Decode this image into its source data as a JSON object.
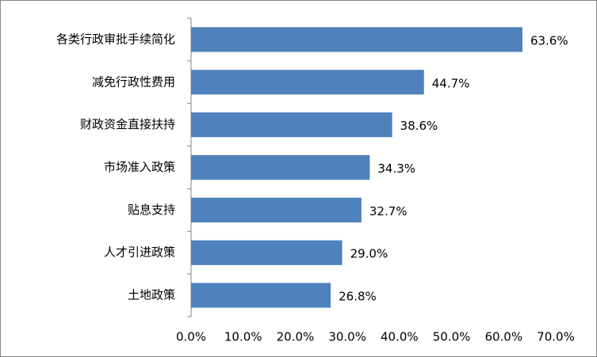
{
  "chart_data": {
    "type": "hbar",
    "categories": [
      "各类行政审批手续简化",
      "减免行政性费用",
      "财政资金直接扶持",
      "市场准入政策",
      "贴息支持",
      "人才引进政策",
      "土地政策"
    ],
    "values": [
      63.6,
      44.7,
      38.6,
      34.3,
      32.7,
      29.0,
      26.8
    ],
    "value_labels": [
      "63.6%",
      "44.7%",
      "38.6%",
      "34.3%",
      "32.7%",
      "29.0%",
      "26.8%"
    ],
    "color": "#4f81bd",
    "xlim": [
      0,
      70
    ],
    "xticks": [
      {
        "value": 0,
        "label": "0.0%"
      },
      {
        "value": 10,
        "label": "10.0%"
      },
      {
        "value": 20,
        "label": "20.0%"
      },
      {
        "value": 30,
        "label": "30.0%"
      },
      {
        "value": 40,
        "label": "40.0%"
      },
      {
        "value": 50,
        "label": "50.0%"
      },
      {
        "value": 60,
        "label": "60.0%"
      },
      {
        "value": 70,
        "label": "70.0%"
      }
    ],
    "grid": false
  }
}
